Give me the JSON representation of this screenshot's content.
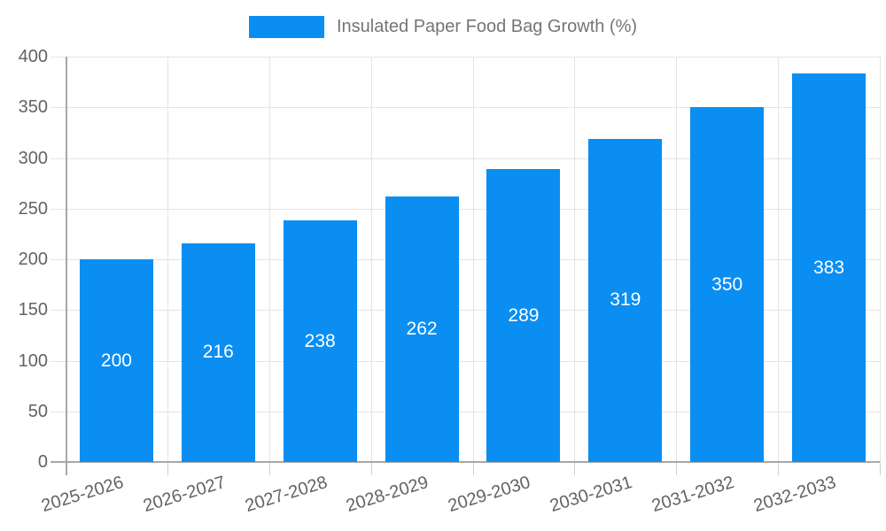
{
  "chart_data": {
    "type": "bar",
    "title": "Insulated Paper Food Bag Growth (%)",
    "categories": [
      "2025-2026",
      "2026-2027",
      "2027-2028",
      "2028-2029",
      "2029-2030",
      "2030-2031",
      "2031-2032",
      "2032-2033"
    ],
    "values": [
      200,
      216,
      238,
      262,
      289,
      319,
      350,
      383
    ],
    "series": [
      {
        "name": "Insulated Paper Food Bag Growth (%)",
        "values": [
          200,
          216,
          238,
          262,
          289,
          319,
          350,
          383
        ]
      }
    ],
    "xlabel": "",
    "ylabel": "",
    "ylim": [
      0,
      400
    ],
    "yticks": [
      0,
      50,
      100,
      150,
      200,
      250,
      300,
      350,
      400
    ],
    "grid": true,
    "legend_position": "top",
    "x_tick_rotation_deg": -17,
    "bar_labels_shown": true
  },
  "colors": {
    "bar": "#0a8ef2",
    "grid": "#e4e4e4",
    "axis": "#a8a8a8",
    "minor_tick": "#cfcfcf",
    "axis_label_text": "#636363",
    "legend_text": "#757575",
    "bar_label_text": "#ffffff",
    "background": "#ffffff"
  }
}
